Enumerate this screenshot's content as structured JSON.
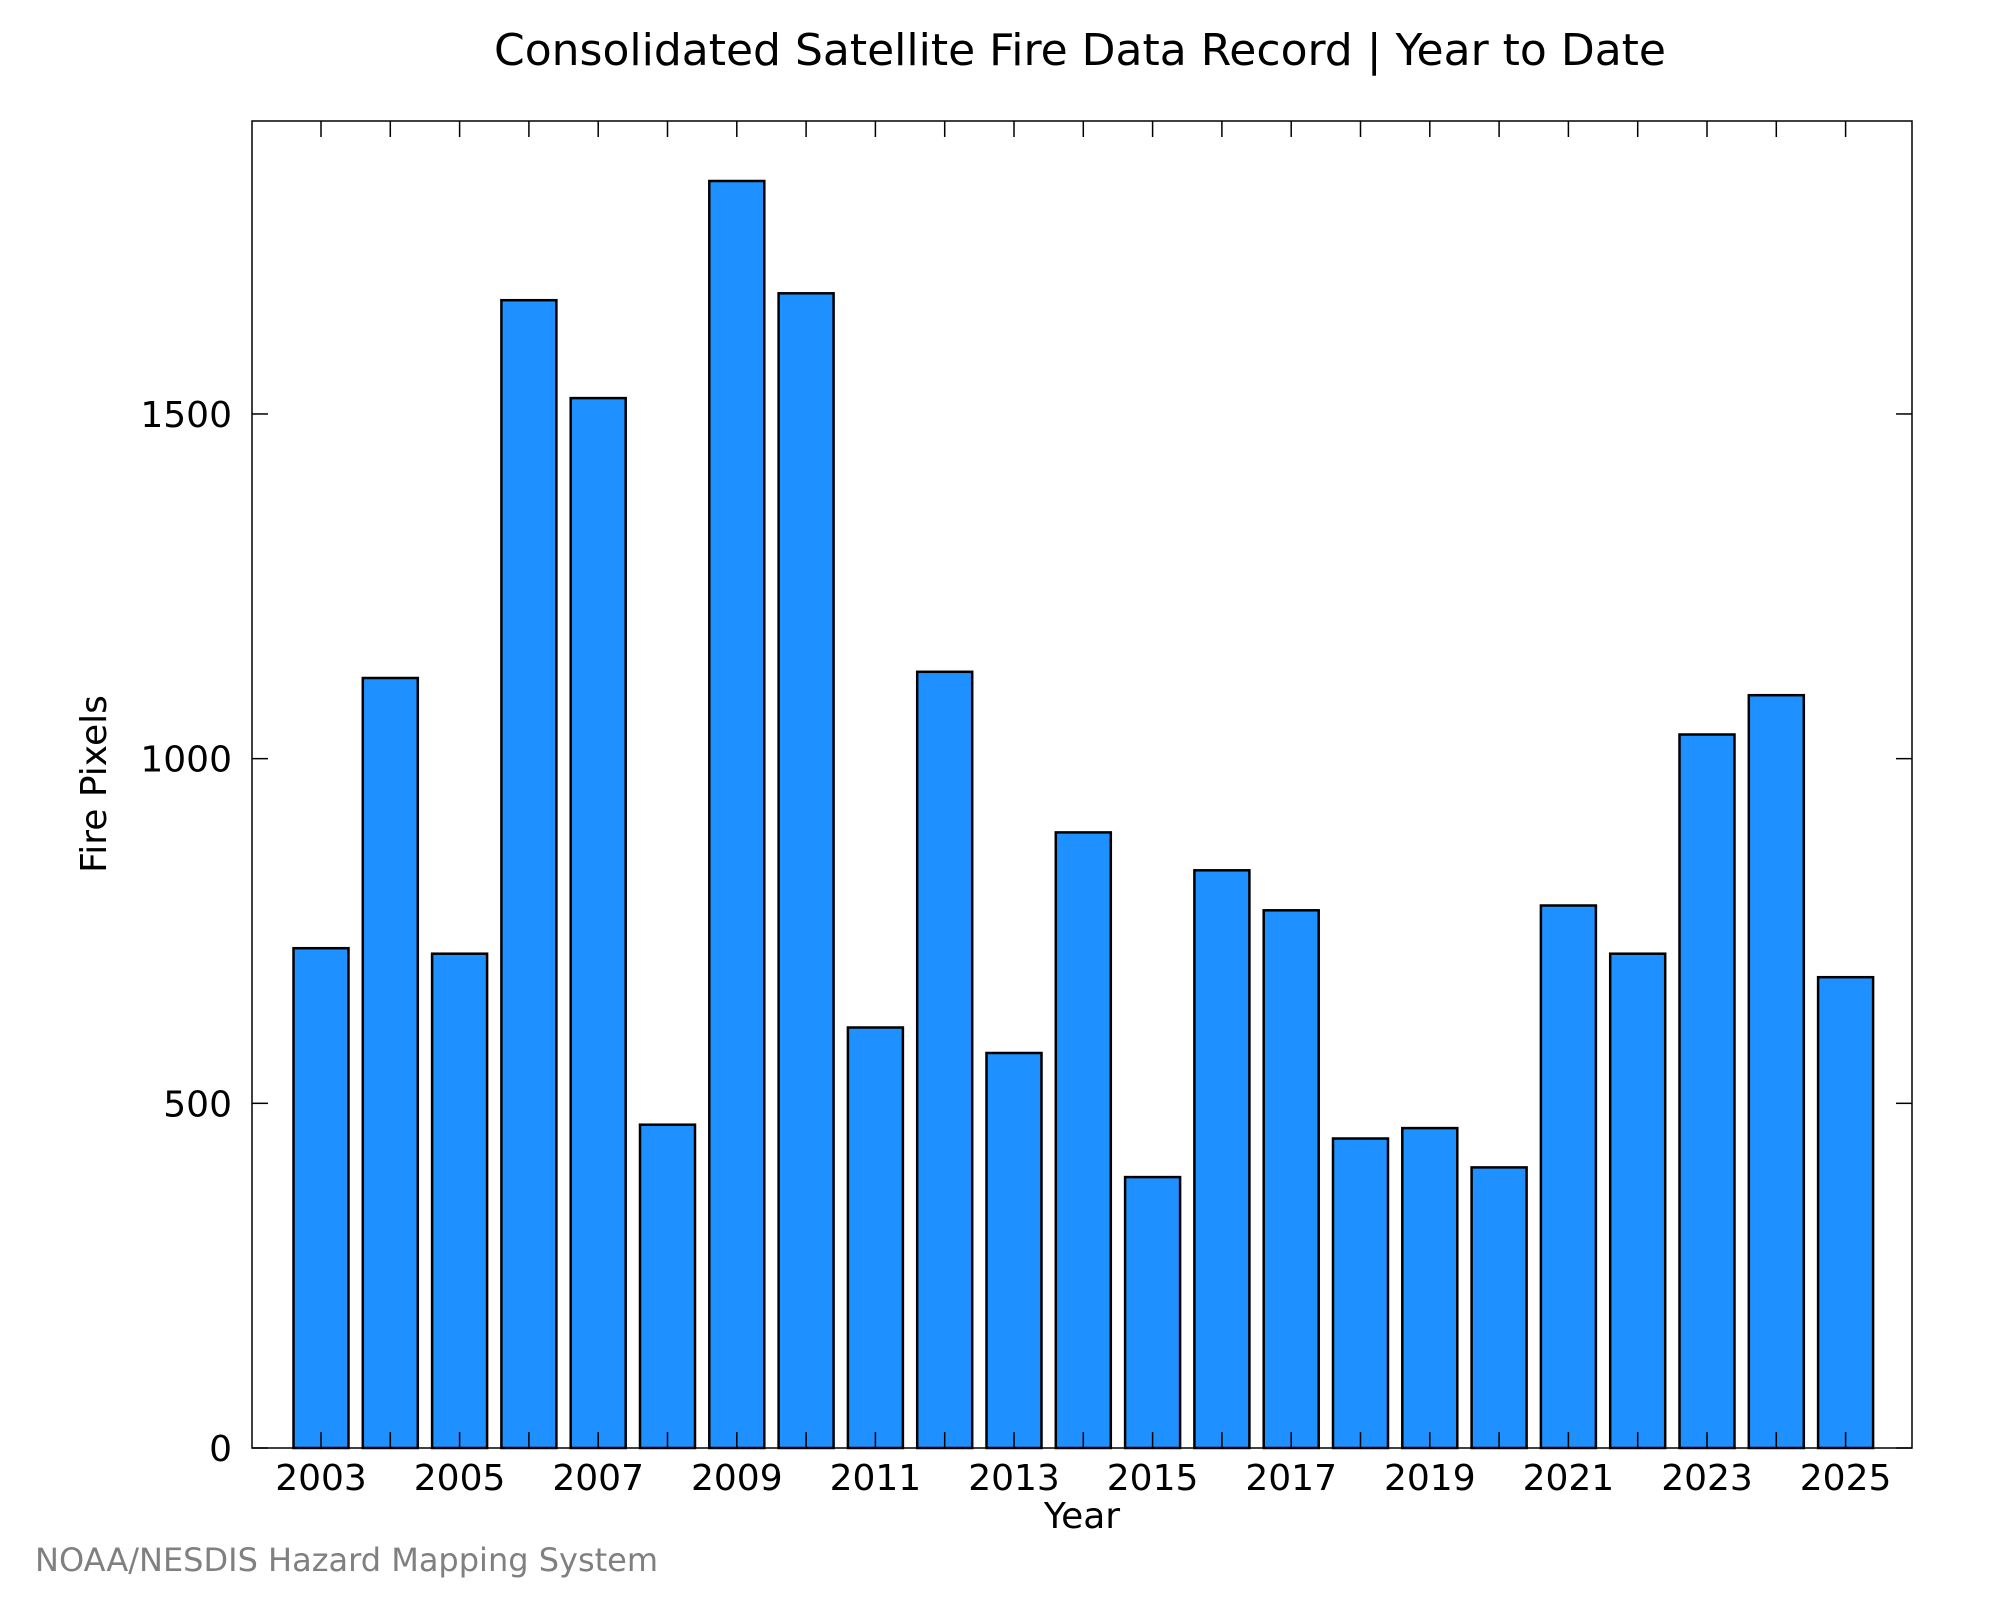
{
  "chart_data": {
    "type": "bar",
    "title": "Consolidated Satellite Fire Data Record | Year to Date",
    "xlabel": "Year",
    "ylabel": "Fire Pixels",
    "categories": [
      "2003",
      "2004",
      "2005",
      "2006",
      "2007",
      "2008",
      "2009",
      "2010",
      "2011",
      "2012",
      "2013",
      "2014",
      "2015",
      "2016",
      "2017",
      "2018",
      "2019",
      "2020",
      "2021",
      "2022",
      "2023",
      "2024",
      "2025"
    ],
    "values": [
      725,
      1117,
      717,
      1665,
      1523,
      469,
      1838,
      1675,
      610,
      1126,
      573,
      893,
      393,
      838,
      780,
      449,
      464,
      407,
      787,
      717,
      1035,
      1092,
      683
    ],
    "ylim": [
      0,
      1925
    ],
    "yticks": [
      0,
      500,
      1000,
      1500
    ],
    "ytick_labels": [
      "0",
      "500",
      "1000",
      "1500"
    ],
    "xtick_labels": [
      "2003",
      "2005",
      "2007",
      "2009",
      "2011",
      "2013",
      "2015",
      "2017",
      "2019",
      "2021",
      "2023",
      "2025"
    ],
    "grid": false,
    "bar_color": "#1e90ff",
    "edge_color": "#000000"
  },
  "credit": "NOAA/NESDIS Hazard Mapping System"
}
